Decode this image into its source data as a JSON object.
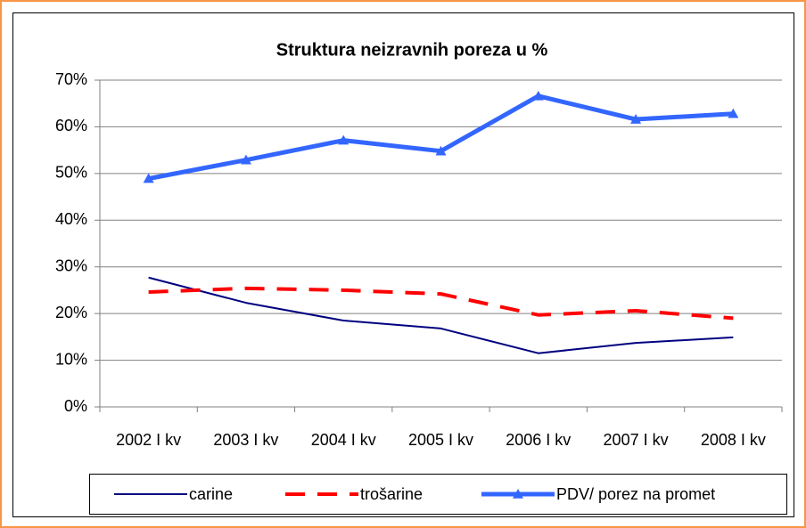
{
  "chart_data": {
    "type": "line",
    "title": "Struktura neizravnih poreza u %",
    "categories": [
      "2002 I kv",
      "2003 I kv",
      "2004 I kv",
      "2005 I kv",
      "2006 I kv",
      "2007 I kv",
      "2008 I kv"
    ],
    "series": [
      {
        "name": "carine",
        "color": "#000080",
        "values": [
          27.7,
          22.3,
          18.5,
          16.8,
          11.5,
          13.7,
          14.9
        ]
      },
      {
        "name": "trošarine",
        "color": "#ff0000",
        "values": [
          24.6,
          25.4,
          25,
          24.2,
          19.7,
          20.6,
          19
        ]
      },
      {
        "name": "PDV/ porez na promet",
        "color": "#3366ff",
        "values": [
          48.9,
          52.9,
          57.1,
          54.8,
          66.6,
          61.6,
          62.8
        ]
      }
    ],
    "ylim": [
      0,
      70
    ],
    "yticks": [
      {
        "value": 0,
        "label": "0%"
      },
      {
        "value": 10,
        "label": "10%"
      },
      {
        "value": 20,
        "label": "20%"
      },
      {
        "value": 30,
        "label": "30%"
      },
      {
        "value": 40,
        "label": "40%"
      },
      {
        "value": 50,
        "label": "50%"
      },
      {
        "value": 60,
        "label": "60%"
      },
      {
        "value": 70,
        "label": "70%"
      }
    ],
    "grid": true,
    "legend": "bottom"
  }
}
